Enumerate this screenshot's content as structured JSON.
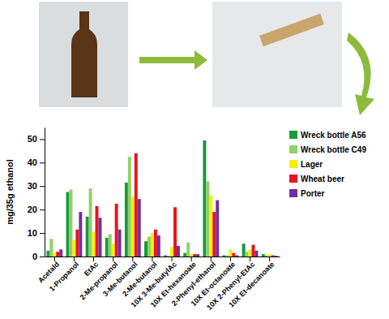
{
  "chart_data": {
    "type": "bar",
    "y_label": "mg/35g ethanol",
    "categories": [
      "Acetald",
      "1-Propanol",
      "EtAc",
      "2-Me-propanol",
      "3-Me-butanol",
      "2-Me-butanol",
      "10X 3-Me-butylAc",
      "10X Et-hexanoate",
      "2-Phenyl-ethanol",
      "10X Et-octanoate",
      "10X 2-Phenyl-EtAc",
      "10X Et-decanoate"
    ],
    "series": [
      {
        "name": "Wreck bottle A56",
        "color": "#1a9a3a",
        "values": [
          2.5,
          27.5,
          17,
          8,
          31.5,
          6.5,
          0.5,
          1.5,
          49.5,
          0.5,
          5.5,
          1
        ]
      },
      {
        "name": "Wreck bottle C49",
        "color": "#8fd16a",
        "values": [
          7.5,
          28.5,
          29,
          9.5,
          42.5,
          8.5,
          0.3,
          6,
          32,
          0.5,
          2,
          0.5
        ]
      },
      {
        "name": "Lager",
        "color": "#f2f200",
        "values": [
          1.5,
          7,
          10.5,
          5.5,
          25.5,
          10,
          4,
          1,
          26,
          3,
          3,
          1
        ]
      },
      {
        "name": "Wheat beer",
        "color": "#e8141c",
        "values": [
          2,
          11.5,
          21.5,
          22.5,
          44,
          11.5,
          21,
          1,
          19,
          1.5,
          5,
          0.5
        ]
      },
      {
        "name": "Porter",
        "color": "#7030a0",
        "values": [
          3,
          19,
          16.5,
          11.5,
          24.5,
          9,
          4.5,
          1,
          24,
          0.5,
          2.5,
          0.3
        ]
      }
    ],
    "ylim": [
      0,
      55
    ],
    "yticks": [
      0,
      10,
      20,
      30,
      40,
      50
    ],
    "grid": false,
    "legend": "upper right"
  }
}
